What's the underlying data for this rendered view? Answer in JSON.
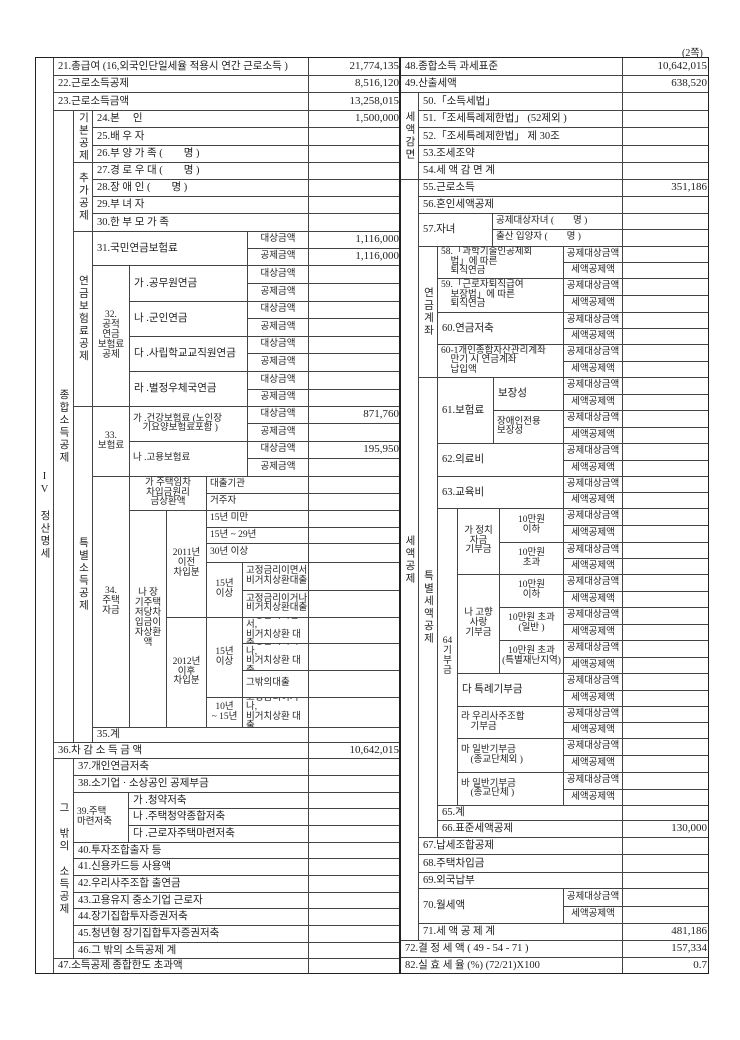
{
  "page_marker": "(2쪽)",
  "section": "IV 정산명세",
  "common": {
    "target": "대상금액",
    "deduct": "공제금액",
    "credit_target": "공제대상금액",
    "credit": "세액공제액"
  },
  "left": {
    "r21": {
      "label": "21.총급여 (16,외국인단일세율 적용시 연간 근로소득 )",
      "value": "21,774,135"
    },
    "r22": {
      "label": "22.근로소득공제",
      "value": "8,516,120"
    },
    "r23": {
      "label": "23.근로소득금액",
      "value": "13,258,015"
    },
    "comprehensive": "종합소득공제",
    "basic": "기본공제",
    "r24": {
      "label": "24.본　 인",
      "value": "1,500,000"
    },
    "r25": {
      "label": "25.배 우 자"
    },
    "r26": {
      "label": "26.부 양 가 족 (　　명 )"
    },
    "additional": "추가공제",
    "r27": {
      "label": "27.경 로 우 대 (　　명 )"
    },
    "r28": {
      "label": "28.장 애 인 (　　명 )"
    },
    "r29": {
      "label": "29.부 녀 자"
    },
    "r30": {
      "label": "30.한 부 모 가 족"
    },
    "pension": "연금보험료공제",
    "r31": {
      "label": "31.국민연금보험료",
      "target_value": "1,116,000",
      "deduct_value": "1,116,000"
    },
    "r32": {
      "label": "32.\n공적\n연금\n보험료\n공제",
      "items": [
        "가 .공무원연금",
        "나 .군인연금",
        "다 .사립학교교직원연금",
        "라 .별정우체국연금"
      ]
    },
    "special": "특별소득공제",
    "r33": {
      "label": "33.\n보험료",
      "items": [
        "가 .건강보험료 (노인장\n　기요양보험료포함 )",
        "나 .고용보험료"
      ],
      "values": [
        "871,760",
        "195,950"
      ]
    },
    "r34": {
      "label": "34.\n주택\n자금",
      "ga": "가 주택임차\n차입금원리\n금상환액",
      "lender": "대출기관",
      "resident": "거주자",
      "na": "나 장\n기주택\n저당차\n입금이\n자상환\n액",
      "before2011": "2011년\n이전\n차입분",
      "under15": "15년 미만",
      "y15to29": "15년 ~ 29년",
      "over30": "30년 이상",
      "over15a": "15년\n이상",
      "fixed_and": "고정금리이면서\n비거치상환대출",
      "fixed_or": "고정금리이거나\n비거치상환대출",
      "after2012": "2012년\n이후\n차입분",
      "over15b": "15년\n이상",
      "fixed_and2": "고정금리이면서,\n비거치상환 대출",
      "fixed_or2": "고정금리이거나,\n비거치상환 대출",
      "other_loan": "그밖의대출",
      "y10to15": "10년\n~ 15년",
      "fixed_or3": "고정금리이거나,\n비거치상환 대출"
    },
    "r35": {
      "label": "35.계"
    },
    "r36": {
      "label": "36.차 감 소 득 금 액",
      "value": "10,642,015"
    },
    "other": "그 밖의 소득공제",
    "r37": {
      "label": "37.개인연금저축"
    },
    "r38": {
      "label": "38.소기업 · 소상공인 공제부금"
    },
    "r39": {
      "label": "39.주택\n마련저축",
      "items": [
        "가 .청약저축",
        "나 .주택청약종합저축",
        "다 .근로자주택마련저축"
      ]
    },
    "r40": {
      "label": "40.투자조합출자 등"
    },
    "r41": {
      "label": "41.신용카드등 사용액"
    },
    "r42": {
      "label": "42.우리사주조합 출연금"
    },
    "r43": {
      "label": "43.고용유지 중소기업 근로자"
    },
    "r44": {
      "label": "44.장기집합투자증권저축"
    },
    "r45": {
      "label": "45.청년형 장기집합투자증권저축"
    },
    "r46": {
      "label": "46.그 밖의 소득공제 계"
    },
    "r47": {
      "label": "47.소득공제 종합한도 초과액"
    }
  },
  "right": {
    "r48": {
      "label": "48.종합소득 과세표준",
      "value": "10,642,015"
    },
    "r49": {
      "label": "49.산출세액",
      "value": "638,520"
    },
    "reduction": "세액감면",
    "r50": {
      "label": "50.「소득세법」"
    },
    "r51": {
      "label": "51.「조세특례제한법」 (52제외 )"
    },
    "r52": {
      "label": "52.「조세특례제한법」 제 30조"
    },
    "r53": {
      "label": "53.조세조약"
    },
    "r54": {
      "label": "54.세 액 감 면 계"
    },
    "credit": "세액공제",
    "r55": {
      "label": "55.근로소득",
      "value": "351,186"
    },
    "r56": {
      "label": "56.혼인세액공제"
    },
    "r57": {
      "label": "57.자녀",
      "subs": [
        "공제대상자녀 (　　명 )",
        "출산 입양자 (　　명 )"
      ]
    },
    "pension_account": "연금계좌",
    "r58": {
      "label": "58.「과학기술인공제회\n　법」에 따른\n　퇴직연금"
    },
    "r59": {
      "label": "59.「근로자퇴직급여\n　보장법」에 따른\n　퇴직연금"
    },
    "r60": {
      "label": "60.연금저축"
    },
    "r60_1": {
      "label": "60-1개인종합자산관리계좌\n　만기 시 연금계좌\n　납입액"
    },
    "special": "특별세액공제",
    "r61": {
      "label": "61.보험료",
      "items": [
        "보장성",
        "장애인전용\n보장성"
      ]
    },
    "r62": {
      "label": "62.의료비"
    },
    "r63": {
      "label": "63.교육비"
    },
    "r64": {
      "label": "64\n기\n부\n금",
      "ga": "가 정치\n자금\n기부금",
      "ga_items": [
        "10만원\n이하",
        "10만원\n초과"
      ],
      "na": "나 고향\n사랑\n기부금",
      "na_items": [
        "10만원\n이하",
        "10만원 초과\n(일반 )",
        "10만원 초과\n(특별재난지역)"
      ],
      "da": "다 특례기부금",
      "ra": "라 우리사주조합\n　기부금",
      "ma": "마 일반기부금\n　(종교단체외 )",
      "ba": "바 일반기부금\n　(종교단체 )"
    },
    "r65": {
      "label": "65.계"
    },
    "r66": {
      "label": "66.표준세액공제",
      "value": "130,000"
    },
    "r67": {
      "label": "67.납세조합공제"
    },
    "r68": {
      "label": "68.주택차입금"
    },
    "r69": {
      "label": "69.외국납부"
    },
    "r70": {
      "label": "70.월세액"
    },
    "r71": {
      "label": "71.세 액 공 제 계",
      "value": "481,186"
    },
    "r72": {
      "label": "72.결 정 세 액 ( 49 - 54 - 71 )",
      "value": "157,334"
    },
    "r82": {
      "label": "82.실 효 세 율 (%) (72/21)X100",
      "value": "0.7"
    }
  }
}
